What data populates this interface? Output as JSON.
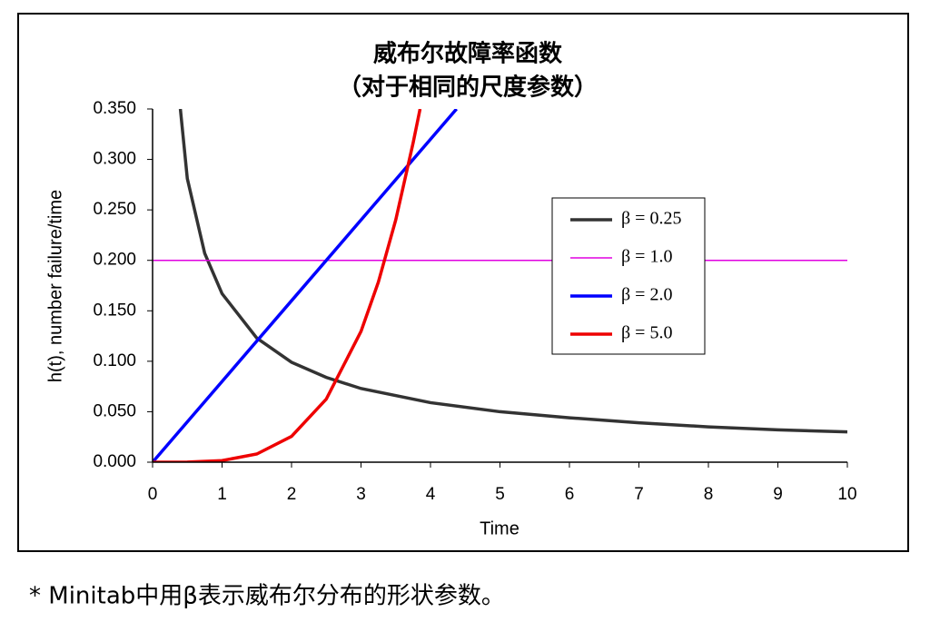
{
  "chart_data": {
    "type": "line",
    "title": "威布尔故障率函数",
    "subtitle": "（对于相同的尺度参数）",
    "x_label": "Time",
    "y_label": "h(t), number failure/time",
    "xlim": [
      0,
      10
    ],
    "xticks": [
      0,
      1,
      2,
      3,
      4,
      5,
      6,
      7,
      8,
      9,
      10
    ],
    "ylim": [
      0,
      0.35
    ],
    "yticks": [
      {
        "value": 0,
        "label": "0.000"
      },
      {
        "value": 0.05,
        "label": "0.050"
      },
      {
        "value": 0.1,
        "label": "0.100"
      },
      {
        "value": 0.15,
        "label": "0.150"
      },
      {
        "value": 0.2,
        "label": "0.200"
      },
      {
        "value": 0.25,
        "label": "0.250"
      },
      {
        "value": 0.3,
        "label": "0.300"
      },
      {
        "value": 0.35,
        "label": "0.350"
      }
    ],
    "grid": false,
    "legend": "right",
    "series": [
      {
        "name": "β = 0.25",
        "color": "#333333",
        "x": [
          0.4,
          0.5,
          0.75,
          1,
          1.5,
          2,
          2.5,
          3,
          4,
          5,
          6,
          7,
          8,
          9,
          10
        ],
        "values": [
          0.35,
          0.281,
          0.207,
          0.167,
          0.123,
          0.099,
          0.084,
          0.073,
          0.059,
          0.05,
          0.044,
          0.039,
          0.035,
          0.032,
          0.03
        ]
      },
      {
        "name": "β = 1.0",
        "color": "#e000e0",
        "x": [
          0,
          10
        ],
        "values": [
          0.2,
          0.2
        ]
      },
      {
        "name": "β = 2.0",
        "color": "#0000ff",
        "x": [
          0,
          1,
          2,
          3,
          4,
          4.375
        ],
        "values": [
          0,
          0.08,
          0.16,
          0.24,
          0.32,
          0.35
        ]
      },
      {
        "name": "β = 5.0",
        "color": "#ee0000",
        "x": [
          0,
          0.5,
          1,
          1.5,
          2,
          2.5,
          3,
          3.25,
          3.5,
          3.75,
          3.85
        ],
        "values": [
          0,
          0.0001,
          0.0016,
          0.0081,
          0.0256,
          0.0625,
          0.1296,
          0.1785,
          0.2401,
          0.3164,
          0.35
        ]
      }
    ]
  },
  "footnote": "* Minitab中用β表示威布尔分布的形状参数。"
}
